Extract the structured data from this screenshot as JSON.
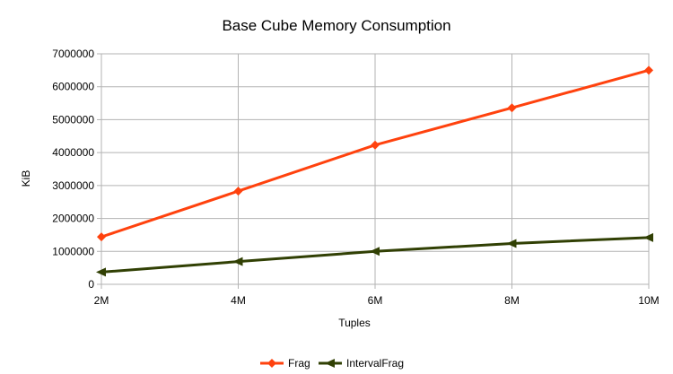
{
  "chart_data": {
    "type": "line",
    "title": "Base Cube Memory Consumption",
    "xlabel": "Tuples",
    "ylabel": "KiB",
    "categories": [
      "2M",
      "4M",
      "6M",
      "8M",
      "10M"
    ],
    "ylim": [
      0,
      7000000
    ],
    "yticks": [
      0,
      1000000,
      2000000,
      3000000,
      4000000,
      5000000,
      6000000,
      7000000
    ],
    "grid": true,
    "legend_position": "bottom",
    "series": [
      {
        "name": "Frag",
        "color": "#ff420e",
        "marker": "diamond",
        "values": [
          1440000,
          2830000,
          4230000,
          5360000,
          6500000
        ]
      },
      {
        "name": "IntervalFrag",
        "color": "#314004",
        "marker": "triangle-left",
        "values": [
          370000,
          690000,
          1000000,
          1240000,
          1420000
        ]
      }
    ]
  }
}
